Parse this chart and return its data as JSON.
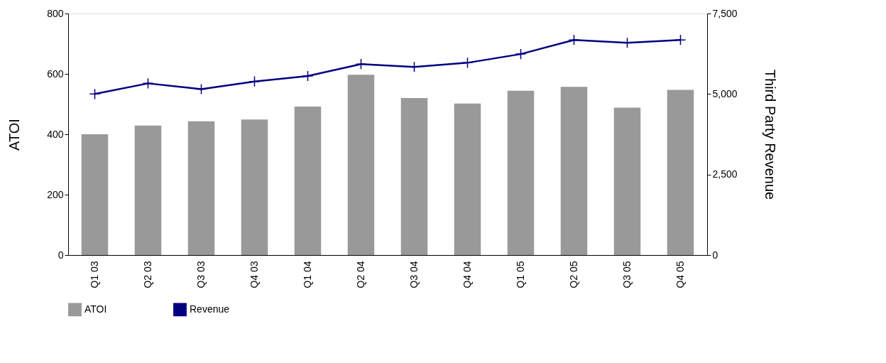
{
  "chart_data": {
    "type": "bar",
    "categories": [
      "Q1 03",
      "Q2 03",
      "Q3 03",
      "Q4 03",
      "Q1 04",
      "Q2 04",
      "Q3 04",
      "Q4 04",
      "Q1 05",
      "Q2 05",
      "Q3 05",
      "Q4 05"
    ],
    "series": [
      {
        "name": "ATOI",
        "color": "#999999",
        "values": [
          400,
          429,
          443,
          449,
          492,
          597,
          520,
          502,
          544,
          557,
          488,
          547
        ]
      },
      {
        "name": "Revenue",
        "type": "line",
        "axis": "y2",
        "color": "#000080",
        "marker": "cross",
        "values": [
          5000,
          5330,
          5150,
          5390,
          5560,
          5930,
          5840,
          5970,
          6240,
          6680,
          6590,
          6680
        ]
      }
    ],
    "ylabel": "ATOI",
    "y2label": "Third Party Revenue",
    "ylim": [
      0,
      800
    ],
    "yticks": [
      0,
      200,
      400,
      600,
      800
    ],
    "y2lim": [
      0,
      7500
    ],
    "y2ticks": [
      0,
      {
        "value": 2500,
        "label": "2,500"
      },
      {
        "value": 5000,
        "label": "5,000"
      },
      {
        "value": 7500,
        "label": "7,500"
      }
    ],
    "grid": false,
    "legend": "bottom"
  }
}
